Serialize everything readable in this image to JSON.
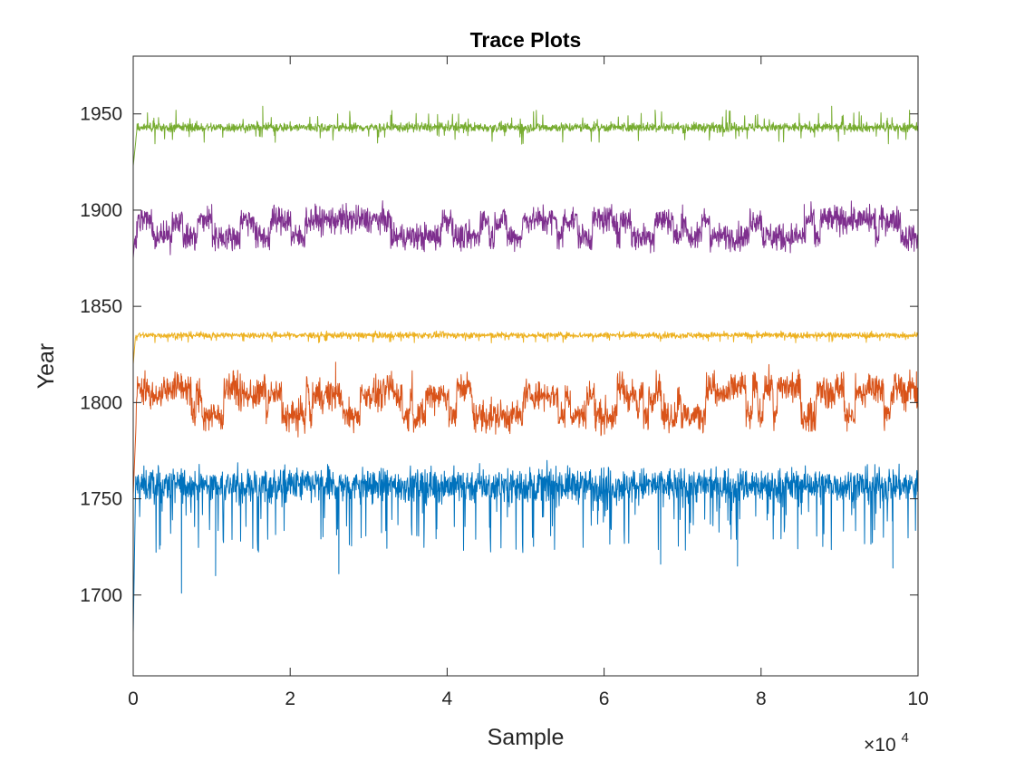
{
  "chart_data": {
    "type": "line",
    "title": "Trace Plots",
    "xlabel": "Sample",
    "ylabel": "Year",
    "x_exponent_label": "×10",
    "x_exponent_power": "4",
    "xlim": [
      0,
      100000
    ],
    "ylim": [
      1658,
      1980
    ],
    "x_ticks": [
      0,
      20000,
      40000,
      60000,
      80000,
      100000
    ],
    "x_tick_labels": [
      "0",
      "2",
      "4",
      "6",
      "8",
      "10"
    ],
    "y_ticks": [
      1700,
      1750,
      1800,
      1850,
      1900,
      1950
    ],
    "y_tick_labels": [
      "1700",
      "1750",
      "1800",
      "1850",
      "1900",
      "1950"
    ],
    "grid": false,
    "legend": "none",
    "n_samples": 100000,
    "series": [
      {
        "color": "#0072BD",
        "start": 1680,
        "burn_in": 300,
        "level": 1757,
        "noise": 4.5,
        "downward_spikes": [
          {
            "x": 6150,
            "y": 1701
          },
          {
            "x": 26200,
            "y": 1711
          },
          {
            "x": 10500,
            "y": 1710
          },
          {
            "x": 96800,
            "y": 1714
          },
          {
            "x": 77000,
            "y": 1715
          },
          {
            "x": 67200,
            "y": 1716
          }
        ]
      },
      {
        "color": "#D95319",
        "start": 1752,
        "burn_in": 400,
        "levels": [
          1793,
          1804,
          1808
        ],
        "noise": 4.0,
        "peaks": [
          {
            "x": 25800,
            "y": 1821
          },
          {
            "x": 6100,
            "y": 1815
          },
          {
            "x": 90500,
            "y": 1816
          },
          {
            "x": 99800,
            "y": 1816
          }
        ]
      },
      {
        "color": "#EDB120",
        "start": 1820,
        "burn_in": 300,
        "level": 1835,
        "noise": 0.8
      },
      {
        "color": "#7E2F8E",
        "start": 1875,
        "burn_in": 200,
        "levels": [
          1886,
          1895
        ],
        "noise": 3.5,
        "peaks": [
          {
            "x": 10000,
            "y": 1903
          },
          {
            "x": 85500,
            "y": 1903
          }
        ]
      },
      {
        "color": "#77AC30",
        "start": 1923,
        "burn_in": 500,
        "level": 1943,
        "noise": 1.2,
        "peaks": [
          {
            "x": 16500,
            "y": 1954
          },
          {
            "x": 89000,
            "y": 1954
          },
          {
            "x": 66500,
            "y": 1952
          }
        ]
      }
    ]
  }
}
